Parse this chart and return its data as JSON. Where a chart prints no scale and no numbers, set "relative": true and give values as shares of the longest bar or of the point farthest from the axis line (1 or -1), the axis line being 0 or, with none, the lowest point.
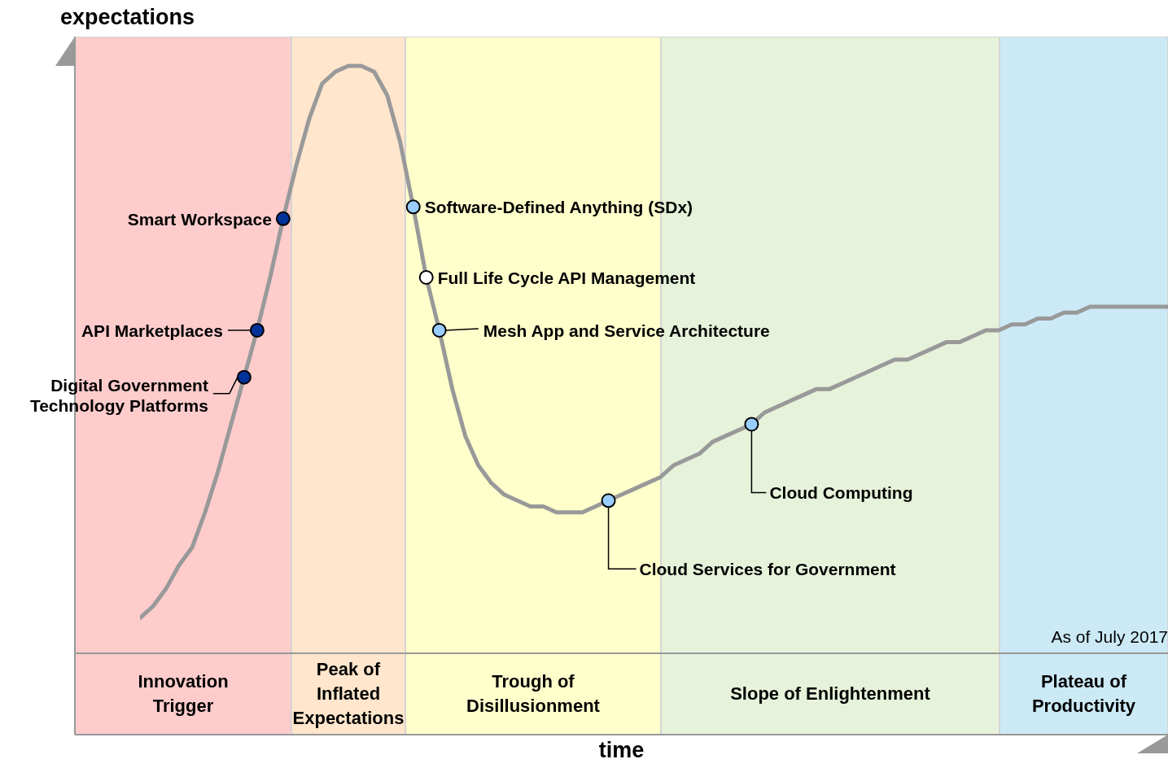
{
  "chart_data": {
    "type": "line",
    "relative": true,
    "ylabel": "expectations",
    "xlabel": "time",
    "marker": "none",
    "line_style": "solid",
    "legend": false,
    "grid": false,
    "tick_labels": false,
    "categories": [
      null,
      null,
      null,
      null,
      null,
      null,
      null,
      null,
      null,
      null,
      null,
      null,
      null,
      null,
      null,
      null,
      null,
      null,
      null,
      null,
      null,
      null,
      null,
      null,
      null,
      null,
      null,
      null,
      null,
      null,
      null,
      null,
      null,
      null,
      null,
      null,
      null,
      null,
      null,
      null,
      null,
      null,
      null,
      null,
      null,
      null,
      null,
      null,
      null,
      null,
      null,
      null,
      null,
      null,
      null,
      null,
      null,
      null,
      null,
      null,
      null,
      null,
      null,
      null,
      null,
      null,
      null,
      null,
      null,
      null,
      null,
      null,
      null,
      null,
      null,
      null,
      null,
      null,
      null,
      null
    ],
    "annotations": [
      "Innovation\nTrigger",
      "Peak of\nInflated\nExpectations",
      "Trough of\nDisillusionment",
      "Slope of Enlightenment",
      "Plateau of\nProductivity",
      "As of July 2017",
      "Smart Workspace",
      "API Marketplaces",
      "Digital Government\nTechnology Platforms",
      "Software-Defined Anything (SDx)",
      "Full Life Cycle API Management",
      "Mesh App and Service Architecture",
      "Cloud Services for Government",
      "Cloud Computing"
    ],
    "series": [
      {
        "color": "#999999",
        "values": [
          0.06,
          0.08,
          0.11,
          0.15,
          0.18,
          0.24,
          0.31,
          0.39,
          0.47,
          0.55,
          0.64,
          0.74,
          0.83,
          0.91,
          0.97,
          0.99,
          1,
          1,
          0.99,
          0.95,
          0.87,
          0.76,
          0.64,
          0.55,
          0.45,
          0.37,
          0.32,
          0.29,
          0.27,
          0.26,
          0.25,
          0.25,
          0.24,
          0.24,
          0.24,
          0.25,
          0.26,
          0.27,
          0.28,
          0.29,
          0.3,
          0.32,
          0.33,
          0.34,
          0.36,
          0.37,
          0.38,
          0.39,
          0.41,
          0.42,
          0.43,
          0.44,
          0.45,
          0.45,
          0.46,
          0.47,
          0.48,
          0.49,
          0.5,
          0.5,
          0.51,
          0.52,
          0.53,
          0.53,
          0.54,
          0.55,
          0.55,
          0.56,
          0.56,
          0.57,
          0.57,
          0.58,
          0.58,
          0.59,
          0.59,
          0.59,
          0.59,
          0.59,
          0.59,
          0.59
        ]
      }
    ]
  }
}
